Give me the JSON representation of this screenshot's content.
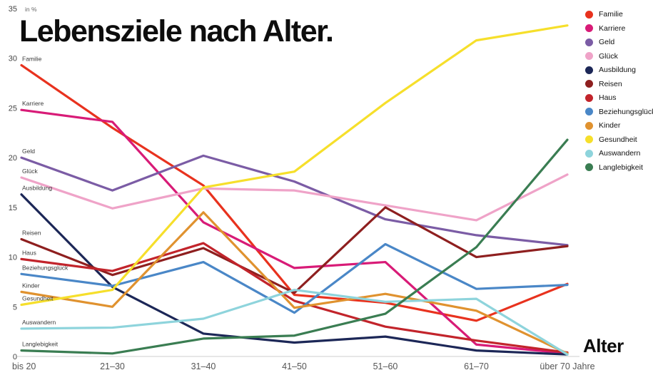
{
  "title": "Lebensziele nach Alter.",
  "chart_data": {
    "type": "line",
    "title": "Lebensziele nach Alter.",
    "xlabel": "Alter",
    "ylabel": "in %",
    "ylim": [
      0,
      35
    ],
    "y_ticks": [
      0,
      5,
      10,
      15,
      20,
      25,
      30,
      35
    ],
    "grid": false,
    "legend_position": "top-right",
    "categories": [
      "bis 20",
      "21–30",
      "31–40",
      "41–50",
      "51–60",
      "61–70",
      "über 70 Jahre"
    ],
    "series": [
      {
        "name": "Familie",
        "color": "#e8321e",
        "values": [
          29.3,
          23.0,
          17.2,
          6.2,
          5.4,
          3.6,
          7.3
        ]
      },
      {
        "name": "Karriere",
        "color": "#d81b77",
        "values": [
          24.8,
          23.6,
          13.5,
          8.9,
          9.5,
          1.2,
          0.3
        ]
      },
      {
        "name": "Geld",
        "color": "#7b5ca5",
        "values": [
          20.0,
          16.7,
          20.2,
          17.6,
          13.8,
          12.2,
          11.2
        ]
      },
      {
        "name": "Glück",
        "color": "#efa3c8",
        "values": [
          18.0,
          14.9,
          16.9,
          16.7,
          15.2,
          13.7,
          18.3
        ]
      },
      {
        "name": "Ausbildung",
        "color": "#1c2757",
        "values": [
          16.3,
          7.0,
          2.3,
          1.4,
          2.0,
          0.6,
          0.2
        ]
      },
      {
        "name": "Reisen",
        "color": "#8e1f1f",
        "values": [
          11.8,
          8.2,
          10.9,
          6.4,
          15.0,
          10.0,
          11.1
        ]
      },
      {
        "name": "Haus",
        "color": "#c2242b",
        "values": [
          9.8,
          8.6,
          11.4,
          5.6,
          3.0,
          1.6,
          0.4
        ]
      },
      {
        "name": "Beziehungsglück",
        "color": "#4a87c7",
        "values": [
          8.3,
          7.1,
          9.5,
          4.4,
          11.3,
          6.8,
          7.2
        ]
      },
      {
        "name": "Kinder",
        "color": "#e0922f",
        "values": [
          6.5,
          5.0,
          14.5,
          4.9,
          6.3,
          4.6,
          0.3
        ]
      },
      {
        "name": "Gesundheit",
        "color": "#f6df2b",
        "values": [
          5.2,
          6.7,
          17.0,
          18.6,
          25.5,
          31.8,
          33.3
        ]
      },
      {
        "name": "Auswandern",
        "color": "#8ed4dc",
        "values": [
          2.8,
          2.9,
          3.8,
          6.7,
          5.5,
          5.8,
          0.2
        ]
      },
      {
        "name": "Langlebigkeit",
        "color": "#3a7d52",
        "values": [
          0.6,
          0.3,
          1.8,
          2.1,
          4.3,
          11.0,
          21.8
        ]
      }
    ]
  }
}
